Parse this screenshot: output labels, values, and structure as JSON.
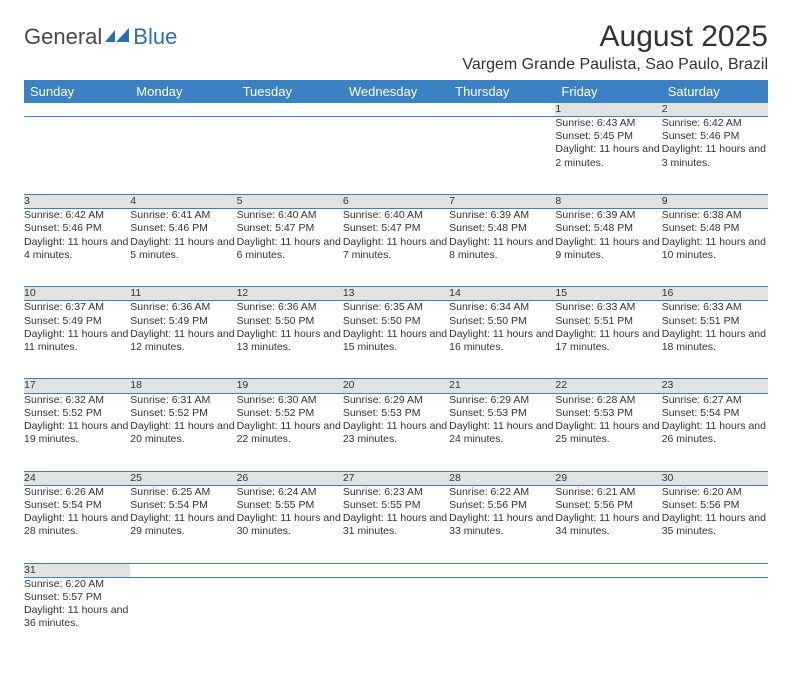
{
  "logo": {
    "text1": "General",
    "text2": "Blue"
  },
  "title": "August 2025",
  "location": "Vargem Grande Paulista, Sao Paulo, Brazil",
  "colors": {
    "header_bg": "#3b82c4",
    "header_text": "#ffffff",
    "daynum_bg": "#e2e2e2",
    "row_border": "#3b82c4",
    "logo_gray": "#4a4a4a",
    "logo_blue": "#2b6fb0"
  },
  "dayHeaders": [
    "Sunday",
    "Monday",
    "Tuesday",
    "Wednesday",
    "Thursday",
    "Friday",
    "Saturday"
  ],
  "weeks": [
    [
      null,
      null,
      null,
      null,
      null,
      {
        "n": "1",
        "sr": "6:43 AM",
        "ss": "5:45 PM",
        "dl": "11 hours and 2 minutes."
      },
      {
        "n": "2",
        "sr": "6:42 AM",
        "ss": "5:46 PM",
        "dl": "11 hours and 3 minutes."
      }
    ],
    [
      {
        "n": "3",
        "sr": "6:42 AM",
        "ss": "5:46 PM",
        "dl": "11 hours and 4 minutes."
      },
      {
        "n": "4",
        "sr": "6:41 AM",
        "ss": "5:46 PM",
        "dl": "11 hours and 5 minutes."
      },
      {
        "n": "5",
        "sr": "6:40 AM",
        "ss": "5:47 PM",
        "dl": "11 hours and 6 minutes."
      },
      {
        "n": "6",
        "sr": "6:40 AM",
        "ss": "5:47 PM",
        "dl": "11 hours and 7 minutes."
      },
      {
        "n": "7",
        "sr": "6:39 AM",
        "ss": "5:48 PM",
        "dl": "11 hours and 8 minutes."
      },
      {
        "n": "8",
        "sr": "6:39 AM",
        "ss": "5:48 PM",
        "dl": "11 hours and 9 minutes."
      },
      {
        "n": "9",
        "sr": "6:38 AM",
        "ss": "5:48 PM",
        "dl": "11 hours and 10 minutes."
      }
    ],
    [
      {
        "n": "10",
        "sr": "6:37 AM",
        "ss": "5:49 PM",
        "dl": "11 hours and 11 minutes."
      },
      {
        "n": "11",
        "sr": "6:36 AM",
        "ss": "5:49 PM",
        "dl": "11 hours and 12 minutes."
      },
      {
        "n": "12",
        "sr": "6:36 AM",
        "ss": "5:50 PM",
        "dl": "11 hours and 13 minutes."
      },
      {
        "n": "13",
        "sr": "6:35 AM",
        "ss": "5:50 PM",
        "dl": "11 hours and 15 minutes."
      },
      {
        "n": "14",
        "sr": "6:34 AM",
        "ss": "5:50 PM",
        "dl": "11 hours and 16 minutes."
      },
      {
        "n": "15",
        "sr": "6:33 AM",
        "ss": "5:51 PM",
        "dl": "11 hours and 17 minutes."
      },
      {
        "n": "16",
        "sr": "6:33 AM",
        "ss": "5:51 PM",
        "dl": "11 hours and 18 minutes."
      }
    ],
    [
      {
        "n": "17",
        "sr": "6:32 AM",
        "ss": "5:52 PM",
        "dl": "11 hours and 19 minutes."
      },
      {
        "n": "18",
        "sr": "6:31 AM",
        "ss": "5:52 PM",
        "dl": "11 hours and 20 minutes."
      },
      {
        "n": "19",
        "sr": "6:30 AM",
        "ss": "5:52 PM",
        "dl": "11 hours and 22 minutes."
      },
      {
        "n": "20",
        "sr": "6:29 AM",
        "ss": "5:53 PM",
        "dl": "11 hours and 23 minutes."
      },
      {
        "n": "21",
        "sr": "6:29 AM",
        "ss": "5:53 PM",
        "dl": "11 hours and 24 minutes."
      },
      {
        "n": "22",
        "sr": "6:28 AM",
        "ss": "5:53 PM",
        "dl": "11 hours and 25 minutes."
      },
      {
        "n": "23",
        "sr": "6:27 AM",
        "ss": "5:54 PM",
        "dl": "11 hours and 26 minutes."
      }
    ],
    [
      {
        "n": "24",
        "sr": "6:26 AM",
        "ss": "5:54 PM",
        "dl": "11 hours and 28 minutes."
      },
      {
        "n": "25",
        "sr": "6:25 AM",
        "ss": "5:54 PM",
        "dl": "11 hours and 29 minutes."
      },
      {
        "n": "26",
        "sr": "6:24 AM",
        "ss": "5:55 PM",
        "dl": "11 hours and 30 minutes."
      },
      {
        "n": "27",
        "sr": "6:23 AM",
        "ss": "5:55 PM",
        "dl": "11 hours and 31 minutes."
      },
      {
        "n": "28",
        "sr": "6:22 AM",
        "ss": "5:56 PM",
        "dl": "11 hours and 33 minutes."
      },
      {
        "n": "29",
        "sr": "6:21 AM",
        "ss": "5:56 PM",
        "dl": "11 hours and 34 minutes."
      },
      {
        "n": "30",
        "sr": "6:20 AM",
        "ss": "5:56 PM",
        "dl": "11 hours and 35 minutes."
      }
    ],
    [
      {
        "n": "31",
        "sr": "6:20 AM",
        "ss": "5:57 PM",
        "dl": "11 hours and 36 minutes."
      },
      null,
      null,
      null,
      null,
      null,
      null
    ]
  ],
  "labels": {
    "sunrise": "Sunrise:",
    "sunset": "Sunset:",
    "daylight": "Daylight:"
  }
}
